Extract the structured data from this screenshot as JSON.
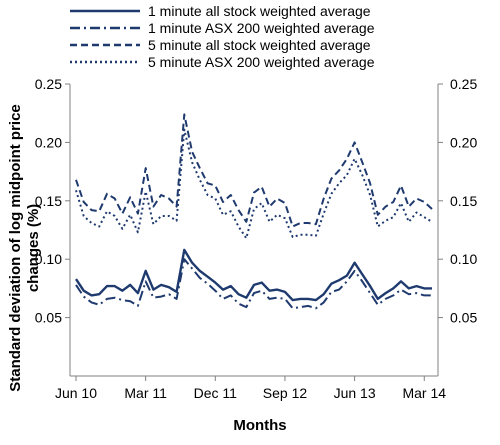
{
  "chart_data": {
    "type": "line",
    "xlabel": "Months",
    "ylabel_line1": "Standard deviation of log midpoint price",
    "ylabel_line2": "changes (%)",
    "ylim": [
      0,
      0.25
    ],
    "yticks": [
      "0.05",
      "0.10",
      "0.15",
      "0.20",
      "0.25"
    ],
    "ytick_values": [
      0.05,
      0.1,
      0.15,
      0.2,
      0.25
    ],
    "x_categories": [
      "Jun 10",
      "Jul 10",
      "Aug 10",
      "Sep 10",
      "Oct 10",
      "Nov 10",
      "Dec 10",
      "Jan 11",
      "Feb 11",
      "Mar 11",
      "Apr 11",
      "May 11",
      "Jun 11",
      "Jul 11",
      "Aug 11",
      "Sep 11",
      "Oct 11",
      "Nov 11",
      "Dec 11",
      "Jan 12",
      "Feb 12",
      "Mar 12",
      "Apr 12",
      "May 12",
      "Jun 12",
      "Jul 12",
      "Aug 12",
      "Sep 12",
      "Oct 12",
      "Nov 12",
      "Dec 12",
      "Jan 13",
      "Feb 13",
      "Mar 13",
      "Apr 13",
      "May 13",
      "Jun 13",
      "Jul 13",
      "Aug 13",
      "Sep 13",
      "Oct 13",
      "Nov 13",
      "Dec 13",
      "Jan 14",
      "Feb 14",
      "Mar 14",
      "Apr 14"
    ],
    "xticks": [
      {
        "label": "Jun 10",
        "index": 0
      },
      {
        "label": "Mar 11",
        "index": 9
      },
      {
        "label": "Dec 11",
        "index": 18
      },
      {
        "label": "Sep 12",
        "index": 27
      },
      {
        "label": "Jun 13",
        "index": 36
      },
      {
        "label": "Mar 14",
        "index": 45
      }
    ],
    "legend_position": "top",
    "series": [
      {
        "name": "1 minute all stock weighted average",
        "style": "solid",
        "color": "#1F3A6E",
        "values": [
          0.083,
          0.073,
          0.069,
          0.07,
          0.077,
          0.077,
          0.073,
          0.078,
          0.071,
          0.09,
          0.074,
          0.078,
          0.076,
          0.072,
          0.108,
          0.097,
          0.09,
          0.085,
          0.08,
          0.074,
          0.077,
          0.07,
          0.067,
          0.078,
          0.08,
          0.073,
          0.074,
          0.072,
          0.065,
          0.066,
          0.066,
          0.065,
          0.07,
          0.079,
          0.082,
          0.086,
          0.097,
          0.087,
          0.077,
          0.066,
          0.071,
          0.075,
          0.081,
          0.075,
          0.077,
          0.075,
          0.075
        ]
      },
      {
        "name": "1 minute ASX 200 weighted average",
        "style": "dashdot",
        "color": "#1F3A6E",
        "values": [
          0.078,
          0.068,
          0.063,
          0.061,
          0.066,
          0.067,
          0.065,
          0.064,
          0.06,
          0.081,
          0.067,
          0.068,
          0.07,
          0.066,
          0.1,
          0.092,
          0.084,
          0.079,
          0.073,
          0.066,
          0.069,
          0.062,
          0.059,
          0.071,
          0.073,
          0.066,
          0.067,
          0.066,
          0.058,
          0.059,
          0.06,
          0.058,
          0.063,
          0.072,
          0.074,
          0.081,
          0.09,
          0.081,
          0.071,
          0.061,
          0.066,
          0.069,
          0.074,
          0.07,
          0.071,
          0.069,
          0.069
        ]
      },
      {
        "name": "5 minute all stock weighted average",
        "style": "dashed",
        "color": "#1F3A6E",
        "values": [
          0.168,
          0.149,
          0.142,
          0.141,
          0.156,
          0.152,
          0.139,
          0.153,
          0.139,
          0.178,
          0.145,
          0.155,
          0.152,
          0.145,
          0.224,
          0.192,
          0.178,
          0.165,
          0.163,
          0.149,
          0.155,
          0.142,
          0.132,
          0.157,
          0.162,
          0.145,
          0.152,
          0.148,
          0.128,
          0.131,
          0.131,
          0.13,
          0.152,
          0.169,
          0.176,
          0.186,
          0.2,
          0.183,
          0.165,
          0.138,
          0.145,
          0.149,
          0.163,
          0.145,
          0.152,
          0.149,
          0.143
        ]
      },
      {
        "name": "5 minute ASX 200 weighted average",
        "style": "dotted",
        "color": "#1F3A6E",
        "values": [
          0.159,
          0.137,
          0.131,
          0.128,
          0.141,
          0.137,
          0.126,
          0.138,
          0.123,
          0.158,
          0.13,
          0.137,
          0.137,
          0.133,
          0.211,
          0.183,
          0.168,
          0.155,
          0.152,
          0.138,
          0.141,
          0.128,
          0.118,
          0.143,
          0.148,
          0.132,
          0.138,
          0.135,
          0.119,
          0.121,
          0.121,
          0.12,
          0.139,
          0.156,
          0.165,
          0.172,
          0.186,
          0.172,
          0.155,
          0.128,
          0.133,
          0.136,
          0.148,
          0.132,
          0.14,
          0.136,
          0.132
        ]
      }
    ]
  }
}
